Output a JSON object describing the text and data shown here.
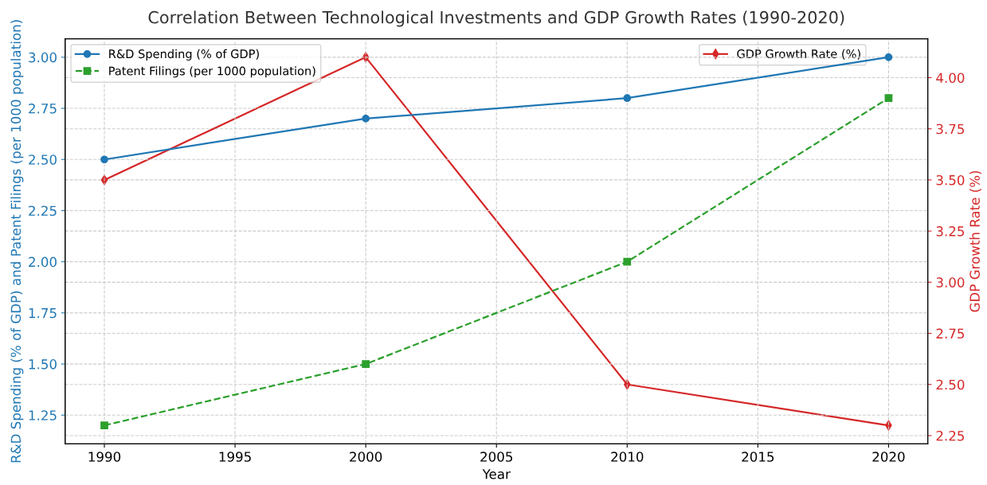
{
  "chart_data": {
    "type": "line",
    "title": "Correlation Between Technological Investments and GDP Growth Rates (1990-2020)",
    "xlabel": "Year",
    "ylabel": "R&D Spending (% of GDP) and Patent Filings (per 1000 population)",
    "y2label": "GDP Growth Rate (%)",
    "x": [
      1990,
      2000,
      2010,
      2020
    ],
    "series": [
      {
        "name": "R&D Spending (% of GDP)",
        "color": "#1f77b4",
        "values": [
          2.5,
          2.7,
          2.8,
          3.0
        ],
        "marker": "circle",
        "line_style": "solid"
      },
      {
        "name": "Patent Filings (per 1000 population)",
        "color": "#2ca02c",
        "values": [
          1.2,
          1.5,
          2.0,
          2.8
        ],
        "marker": "square",
        "line_style": "dashed"
      },
      {
        "name": "GDP Growth Rate (%)",
        "color": "#d62728",
        "values": [
          3.5,
          4.1,
          2.5,
          2.3
        ],
        "marker": "diamond",
        "line_style": "solid",
        "axis": "y2"
      }
    ],
    "xlim": [
      1988.5,
      2021.5
    ],
    "xticks": [
      1990,
      1995,
      2000,
      2005,
      2010,
      2015,
      2020
    ],
    "ylim": [
      1.11,
      3.09
    ],
    "yticks": [
      {
        "value": 1.25,
        "label": "1.25"
      },
      {
        "value": 1.5,
        "label": "1.50"
      },
      {
        "value": 1.75,
        "label": "1.75"
      },
      {
        "value": 2.0,
        "label": "2.00"
      },
      {
        "value": 2.25,
        "label": "2.25"
      },
      {
        "value": 2.5,
        "label": "2.50"
      },
      {
        "value": 2.75,
        "label": "2.75"
      },
      {
        "value": 3.0,
        "label": "3.00"
      }
    ],
    "y2lim": [
      2.21,
      4.19
    ],
    "y2ticks": [
      {
        "value": 2.25,
        "label": "2.25"
      },
      {
        "value": 2.5,
        "label": "2.50"
      },
      {
        "value": 2.75,
        "label": "2.75"
      },
      {
        "value": 3.0,
        "label": "3.00"
      },
      {
        "value": 3.25,
        "label": "3.25"
      },
      {
        "value": 3.5,
        "label": "3.50"
      },
      {
        "value": 3.75,
        "label": "3.75"
      },
      {
        "value": 4.0,
        "label": "4.00"
      }
    ],
    "grid": true,
    "legend": "top left"
  }
}
